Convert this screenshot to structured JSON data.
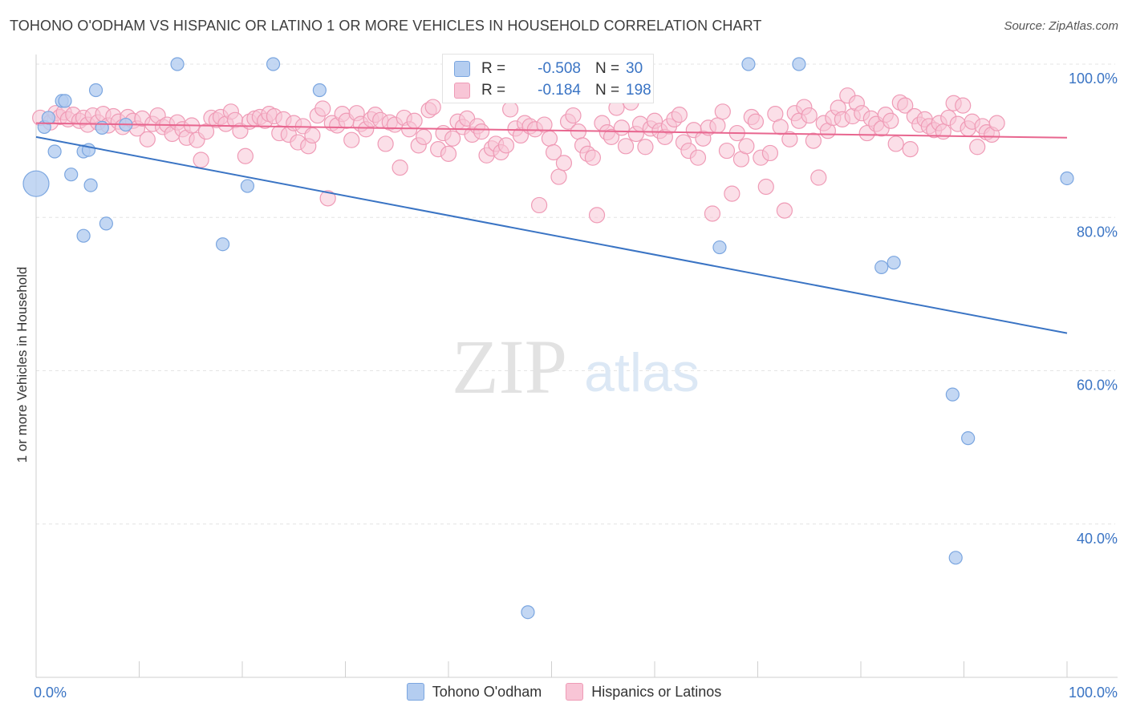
{
  "title": "TOHONO O'ODHAM VS HISPANIC OR LATINO 1 OR MORE VEHICLES IN HOUSEHOLD CORRELATION CHART",
  "source": "Source: ZipAtlas.com",
  "watermark": {
    "zip": "ZIP",
    "atlas": "atlas"
  },
  "stats": [
    {
      "r_label": "R =",
      "r_value": "-0.508",
      "n_label": "N =",
      "n_value": "30"
    },
    {
      "r_label": "R =",
      "r_value": "-0.184",
      "n_label": "N =",
      "n_value": "198"
    }
  ],
  "chart_data": {
    "type": "scatter",
    "ylabel": "1 or more Vehicles in Household",
    "xlim": [
      0,
      100
    ],
    "ylim": [
      20,
      100
    ],
    "x_tick_labels": [
      {
        "value": 0,
        "label": "0.0%"
      },
      {
        "value": 100,
        "label": "100.0%"
      }
    ],
    "y_tick_labels": [
      {
        "value": 100,
        "label": "100.0%"
      },
      {
        "value": 80,
        "label": "80.0%"
      },
      {
        "value": 60,
        "label": "60.0%"
      },
      {
        "value": 40,
        "label": "40.0%"
      }
    ],
    "grid": true,
    "series": [
      {
        "name": "Tohono O'odham",
        "color": "#7ba6e0",
        "fill": "#b4cdf0",
        "line_color": "#3a74c4",
        "trend": [
          [
            0,
            90.5
          ],
          [
            100,
            64.9
          ]
        ],
        "points": [
          [
            0,
            84.4
          ],
          [
            0.8,
            91.8
          ],
          [
            1.2,
            93.0
          ],
          [
            1.8,
            88.6
          ],
          [
            2.5,
            95.2
          ],
          [
            2.8,
            95.2
          ],
          [
            3.4,
            85.6
          ],
          [
            4.6,
            88.6
          ],
          [
            4.6,
            77.6
          ],
          [
            5.1,
            88.8
          ],
          [
            5.3,
            84.2
          ],
          [
            5.8,
            96.6
          ],
          [
            6.4,
            91.7
          ],
          [
            6.8,
            79.2
          ],
          [
            8.7,
            92.1
          ],
          [
            13.7,
            100
          ],
          [
            18.1,
            76.5
          ],
          [
            20.5,
            84.1
          ],
          [
            23.0,
            100
          ],
          [
            27.5,
            96.6
          ],
          [
            47.7,
            28.5
          ],
          [
            66.3,
            76.1
          ],
          [
            69.1,
            100
          ],
          [
            74.0,
            100
          ],
          [
            82.0,
            73.5
          ],
          [
            83.2,
            74.1
          ],
          [
            88.9,
            56.9
          ],
          [
            90.4,
            51.2
          ],
          [
            89.2,
            35.6
          ],
          [
            100,
            85.1
          ]
        ]
      },
      {
        "name": "Hispanics or Latinos",
        "color": "#ef9bb6",
        "fill": "#f8c5d6",
        "line_color": "#e8668f",
        "trend": [
          [
            0,
            92.3
          ],
          [
            100,
            90.4
          ]
        ],
        "points": [
          [
            0.4,
            93.0
          ],
          [
            1.4,
            92.4
          ],
          [
            1.9,
            93.6
          ],
          [
            2.3,
            93.1
          ],
          [
            2.7,
            93.7
          ],
          [
            3.1,
            92.8
          ],
          [
            3.6,
            93.4
          ],
          [
            4.2,
            92.6
          ],
          [
            4.6,
            93.0
          ],
          [
            5.0,
            92.1
          ],
          [
            5.5,
            93.3
          ],
          [
            6.0,
            92.4
          ],
          [
            6.5,
            93.5
          ],
          [
            7.0,
            92.0
          ],
          [
            7.5,
            93.2
          ],
          [
            8.0,
            92.5
          ],
          [
            8.4,
            91.8
          ],
          [
            8.9,
            93.1
          ],
          [
            9.4,
            92.6
          ],
          [
            9.8,
            91.6
          ],
          [
            10.3,
            92.9
          ],
          [
            10.8,
            90.2
          ],
          [
            11.3,
            92.2
          ],
          [
            11.8,
            93.3
          ],
          [
            12.3,
            91.8
          ],
          [
            12.7,
            92.1
          ],
          [
            13.2,
            90.9
          ],
          [
            13.7,
            92.4
          ],
          [
            14.2,
            91.5
          ],
          [
            14.6,
            90.4
          ],
          [
            15.1,
            92.0
          ],
          [
            15.6,
            90.1
          ],
          [
            16.0,
            87.5
          ],
          [
            16.5,
            91.2
          ],
          [
            17.0,
            93.0
          ],
          [
            17.5,
            92.7
          ],
          [
            17.9,
            93.1
          ],
          [
            18.4,
            92.2
          ],
          [
            18.9,
            93.8
          ],
          [
            19.3,
            92.7
          ],
          [
            19.8,
            91.3
          ],
          [
            20.3,
            88.0
          ],
          [
            20.7,
            92.5
          ],
          [
            21.2,
            92.9
          ],
          [
            21.7,
            93.1
          ],
          [
            22.2,
            92.6
          ],
          [
            22.6,
            93.5
          ],
          [
            23.1,
            93.2
          ],
          [
            23.6,
            91.0
          ],
          [
            24.0,
            92.8
          ],
          [
            24.5,
            90.8
          ],
          [
            25.0,
            92.3
          ],
          [
            25.4,
            89.8
          ],
          [
            25.9,
            91.9
          ],
          [
            26.4,
            89.3
          ],
          [
            26.8,
            90.7
          ],
          [
            27.3,
            93.3
          ],
          [
            27.8,
            94.2
          ],
          [
            28.3,
            82.5
          ],
          [
            28.7,
            92.3
          ],
          [
            29.2,
            92.0
          ],
          [
            29.7,
            93.5
          ],
          [
            30.1,
            92.6
          ],
          [
            30.6,
            90.1
          ],
          [
            31.1,
            93.6
          ],
          [
            31.5,
            92.2
          ],
          [
            32.0,
            91.5
          ],
          [
            32.5,
            92.8
          ],
          [
            32.9,
            93.4
          ],
          [
            33.4,
            92.7
          ],
          [
            33.9,
            89.6
          ],
          [
            34.3,
            92.4
          ],
          [
            34.8,
            92.1
          ],
          [
            35.3,
            86.5
          ],
          [
            35.7,
            93.0
          ],
          [
            36.2,
            91.5
          ],
          [
            36.7,
            92.6
          ],
          [
            37.1,
            89.4
          ],
          [
            37.6,
            90.5
          ],
          [
            38.1,
            94.0
          ],
          [
            38.5,
            94.4
          ],
          [
            39.0,
            88.9
          ],
          [
            39.5,
            91.0
          ],
          [
            40.0,
            88.3
          ],
          [
            40.4,
            90.3
          ],
          [
            40.9,
            92.5
          ],
          [
            41.4,
            91.8
          ],
          [
            41.8,
            92.9
          ],
          [
            42.3,
            90.8
          ],
          [
            42.8,
            91.9
          ],
          [
            43.2,
            91.2
          ],
          [
            43.7,
            88.1
          ],
          [
            44.2,
            89.0
          ],
          [
            44.6,
            89.6
          ],
          [
            45.1,
            88.5
          ],
          [
            45.6,
            89.4
          ],
          [
            46.0,
            94.1
          ],
          [
            46.5,
            91.6
          ],
          [
            47.0,
            90.7
          ],
          [
            47.4,
            92.3
          ],
          [
            47.9,
            91.9
          ],
          [
            48.4,
            91.5
          ],
          [
            48.8,
            81.6
          ],
          [
            49.3,
            92.1
          ],
          [
            49.8,
            90.3
          ],
          [
            50.2,
            88.5
          ],
          [
            50.7,
            85.3
          ],
          [
            51.2,
            87.1
          ],
          [
            51.6,
            92.5
          ],
          [
            52.1,
            93.3
          ],
          [
            52.6,
            91.2
          ],
          [
            53.0,
            89.4
          ],
          [
            53.5,
            88.3
          ],
          [
            54.0,
            87.8
          ],
          [
            54.4,
            80.3
          ],
          [
            54.9,
            92.3
          ],
          [
            55.4,
            91.1
          ],
          [
            55.8,
            90.5
          ],
          [
            56.3,
            94.3
          ],
          [
            56.8,
            91.7
          ],
          [
            57.2,
            89.3
          ],
          [
            57.7,
            95.0
          ],
          [
            58.2,
            90.9
          ],
          [
            58.6,
            92.2
          ],
          [
            59.1,
            89.2
          ],
          [
            59.6,
            91.6
          ],
          [
            60.0,
            92.6
          ],
          [
            60.5,
            91.3
          ],
          [
            61.0,
            90.5
          ],
          [
            61.4,
            91.9
          ],
          [
            61.9,
            92.8
          ],
          [
            62.4,
            93.4
          ],
          [
            62.8,
            89.8
          ],
          [
            63.3,
            88.7
          ],
          [
            63.8,
            91.4
          ],
          [
            64.2,
            87.8
          ],
          [
            64.7,
            90.3
          ],
          [
            65.2,
            91.7
          ],
          [
            65.6,
            80.5
          ],
          [
            66.1,
            92.0
          ],
          [
            66.6,
            93.8
          ],
          [
            67.0,
            88.7
          ],
          [
            67.5,
            83.1
          ],
          [
            68.0,
            91.0
          ],
          [
            68.4,
            87.6
          ],
          [
            68.9,
            89.3
          ],
          [
            69.4,
            93.1
          ],
          [
            69.8,
            92.5
          ],
          [
            70.3,
            87.8
          ],
          [
            70.8,
            84.0
          ],
          [
            71.2,
            88.4
          ],
          [
            71.7,
            93.5
          ],
          [
            72.2,
            91.8
          ],
          [
            72.6,
            80.9
          ],
          [
            73.1,
            90.2
          ],
          [
            73.6,
            93.6
          ],
          [
            74.0,
            92.6
          ],
          [
            74.5,
            94.4
          ],
          [
            75.0,
            93.3
          ],
          [
            75.4,
            90.0
          ],
          [
            75.9,
            85.2
          ],
          [
            76.4,
            92.3
          ],
          [
            76.8,
            91.3
          ],
          [
            77.3,
            93.0
          ],
          [
            77.8,
            94.3
          ],
          [
            78.2,
            92.8
          ],
          [
            78.7,
            95.9
          ],
          [
            79.2,
            93.2
          ],
          [
            79.6,
            94.9
          ],
          [
            80.1,
            93.6
          ],
          [
            80.6,
            91.0
          ],
          [
            81.0,
            92.9
          ],
          [
            81.5,
            92.2
          ],
          [
            82.0,
            91.6
          ],
          [
            82.4,
            93.4
          ],
          [
            82.9,
            92.6
          ],
          [
            83.4,
            89.6
          ],
          [
            83.8,
            95.0
          ],
          [
            84.3,
            94.6
          ],
          [
            84.8,
            88.9
          ],
          [
            85.2,
            93.2
          ],
          [
            85.7,
            92.1
          ],
          [
            86.2,
            92.8
          ],
          [
            86.6,
            91.9
          ],
          [
            87.1,
            91.4
          ],
          [
            87.6,
            92.3
          ],
          [
            88.0,
            91.2
          ],
          [
            88.5,
            93.0
          ],
          [
            89.0,
            94.9
          ],
          [
            89.4,
            92.2
          ],
          [
            89.9,
            94.6
          ],
          [
            90.4,
            91.6
          ],
          [
            90.8,
            92.5
          ],
          [
            91.3,
            89.2
          ],
          [
            91.8,
            91.9
          ],
          [
            92.2,
            91.1
          ],
          [
            92.7,
            90.8
          ],
          [
            93.2,
            92.3
          ]
        ]
      }
    ]
  },
  "legend": [
    "Tohono O'odham",
    "Hispanics or Latinos"
  ]
}
